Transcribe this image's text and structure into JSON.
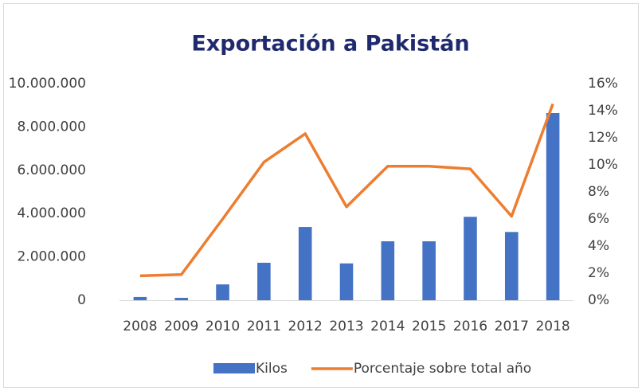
{
  "chart_data": {
    "type": "bar_line",
    "title": "Exportación a Pakistán",
    "categories": [
      "2008",
      "2009",
      "2010",
      "2011",
      "2012",
      "2013",
      "2014",
      "2015",
      "2016",
      "2017",
      "2018"
    ],
    "series": [
      {
        "name": "Kilos",
        "type": "bar",
        "color": "#4472c4",
        "axis": "y",
        "values": [
          150000,
          110000,
          730000,
          1730000,
          3380000,
          1700000,
          2720000,
          2720000,
          3850000,
          3150000,
          8640000
        ]
      },
      {
        "name": "Porcentaje sobre total año",
        "type": "line",
        "color": "#ed7d31",
        "axis": "y2",
        "values": [
          1.8,
          1.9,
          6.0,
          10.2,
          12.3,
          6.9,
          9.9,
          9.9,
          9.7,
          6.2,
          14.5
        ]
      }
    ],
    "ylim": [
      0,
      10000000
    ],
    "yticks": [
      {
        "value": 0,
        "label": "0"
      },
      {
        "value": 2000000,
        "label": "2.000.000"
      },
      {
        "value": 4000000,
        "label": "4.000.000"
      },
      {
        "value": 6000000,
        "label": "6.000.000"
      },
      {
        "value": 8000000,
        "label": "8.000.000"
      },
      {
        "value": 10000000,
        "label": "10.000.000"
      }
    ],
    "y2lim": [
      0,
      16
    ],
    "y2ticks": [
      {
        "value": 0,
        "label": "0%"
      },
      {
        "value": 2,
        "label": "2%"
      },
      {
        "value": 4,
        "label": "4%"
      },
      {
        "value": 6,
        "label": "6%"
      },
      {
        "value": 8,
        "label": "8%"
      },
      {
        "value": 10,
        "label": "10%"
      },
      {
        "value": 12,
        "label": "12%"
      },
      {
        "value": 14,
        "label": "14%"
      },
      {
        "value": 16,
        "label": "16%"
      }
    ],
    "legend": "bottom",
    "grid": false
  }
}
